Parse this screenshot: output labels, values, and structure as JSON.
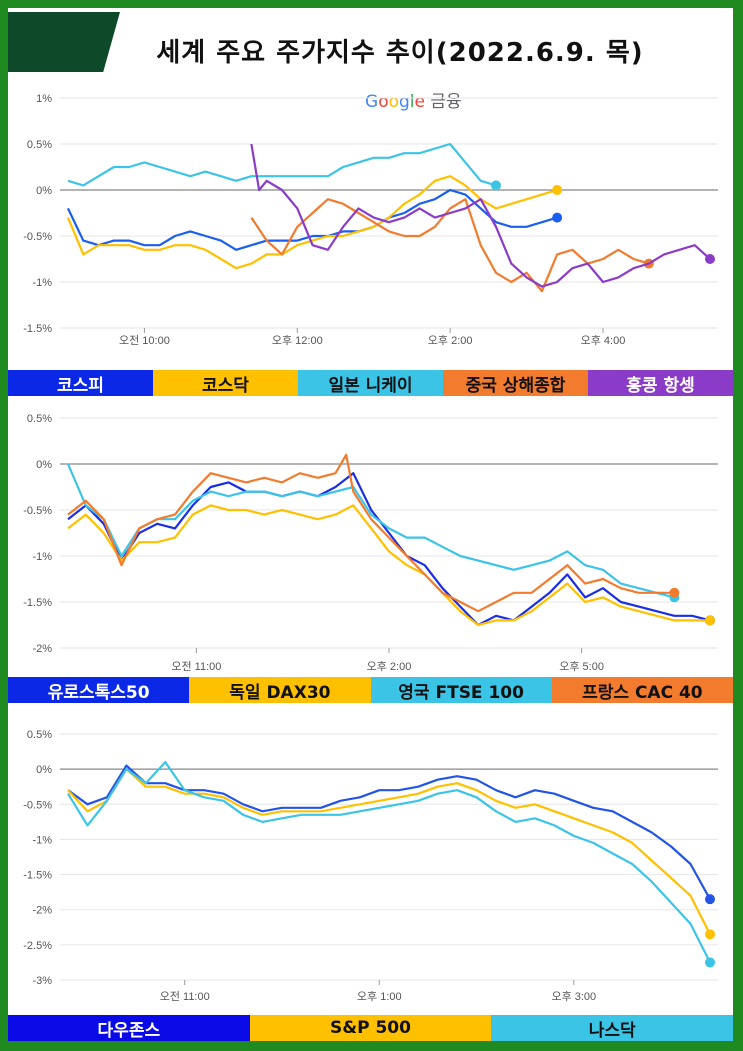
{
  "title": "세계 주요 주가지수 추이(2022.6.9. 목)",
  "source_label": {
    "google": "Google",
    "finance": "금융"
  },
  "colors": {
    "navy": "#1a2ee6",
    "yellow": "#ffc000",
    "cyan": "#3cc4e6",
    "orange": "#f27b2e",
    "purple": "#8a3cc8",
    "legend_blue": "#0a28e6",
    "legend_blue2": "#0a0ae6"
  },
  "chart_data": [
    {
      "type": "line",
      "y_ticks": [
        "1%",
        "0.5%",
        "0%",
        "-0.5%",
        "-1%",
        "-1.5%"
      ],
      "x_ticks": [
        "오전 10:00",
        "오후 12:00",
        "오후 2:00",
        "오후 4:00"
      ],
      "ylim": [
        -1.5,
        1
      ],
      "series": [
        {
          "name": "코스피",
          "color": "#1a5ff0",
          "x": [
            0.0,
            0.2,
            0.4,
            0.6,
            0.8,
            1.0,
            1.2,
            1.4,
            1.6,
            1.8,
            2.0,
            2.2,
            2.4,
            2.6,
            2.8,
            3.0,
            3.2,
            3.4,
            3.6,
            3.8,
            4.0,
            4.2,
            4.4,
            4.6,
            4.8,
            5.0,
            5.2,
            5.4,
            5.6,
            5.8,
            6.0,
            6.2,
            6.4
          ],
          "y": [
            -0.2,
            -0.55,
            -0.6,
            -0.55,
            -0.55,
            -0.6,
            -0.6,
            -0.5,
            -0.45,
            -0.5,
            -0.55,
            -0.65,
            -0.6,
            -0.55,
            -0.55,
            -0.55,
            -0.5,
            -0.5,
            -0.45,
            -0.45,
            -0.4,
            -0.3,
            -0.25,
            -0.15,
            -0.1,
            0.0,
            -0.05,
            -0.2,
            -0.35,
            -0.4,
            -0.4,
            -0.35,
            -0.3
          ]
        },
        {
          "name": "코스닥",
          "color": "#ffc000",
          "x": [
            0.0,
            0.2,
            0.4,
            0.6,
            0.8,
            1.0,
            1.2,
            1.4,
            1.6,
            1.8,
            2.0,
            2.2,
            2.4,
            2.6,
            2.8,
            3.0,
            3.2,
            3.4,
            3.6,
            3.8,
            4.0,
            4.2,
            4.4,
            4.6,
            4.8,
            5.0,
            5.2,
            5.4,
            5.6,
            5.8,
            6.0,
            6.2,
            6.4
          ],
          "y": [
            -0.3,
            -0.7,
            -0.6,
            -0.6,
            -0.6,
            -0.65,
            -0.65,
            -0.6,
            -0.6,
            -0.65,
            -0.75,
            -0.85,
            -0.8,
            -0.7,
            -0.7,
            -0.6,
            -0.55,
            -0.5,
            -0.5,
            -0.45,
            -0.4,
            -0.3,
            -0.15,
            -0.05,
            0.1,
            0.15,
            0.05,
            -0.1,
            -0.2,
            -0.15,
            -0.1,
            -0.05,
            0.0
          ]
        },
        {
          "name": "일본 니케이",
          "color": "#3cc4e6",
          "x": [
            0.0,
            0.2,
            0.4,
            0.6,
            0.8,
            1.0,
            1.2,
            1.4,
            1.6,
            1.8,
            2.0,
            2.2,
            2.4,
            2.6,
            2.8,
            3.0,
            3.2,
            3.4,
            3.6,
            3.8,
            4.0,
            4.2,
            4.4,
            4.6,
            4.8,
            5.0,
            5.2,
            5.4,
            5.6
          ],
          "y": [
            0.1,
            0.05,
            0.15,
            0.25,
            0.25,
            0.3,
            0.25,
            0.2,
            0.15,
            0.2,
            0.15,
            0.1,
            0.15,
            0.15,
            0.15,
            0.15,
            0.15,
            0.15,
            0.25,
            0.3,
            0.35,
            0.35,
            0.4,
            0.4,
            0.45,
            0.5,
            0.3,
            0.1,
            0.05
          ]
        },
        {
          "name": "중국 상해종합",
          "color": "#f27b2e",
          "x": [
            2.4,
            2.6,
            2.8,
            3.0,
            3.2,
            3.4,
            3.6,
            3.8,
            4.0,
            4.2,
            4.4,
            4.6,
            4.8,
            5.0,
            5.2,
            5.4,
            5.6,
            5.8,
            6.0,
            6.2,
            6.4,
            6.6,
            6.8,
            7.0,
            7.2,
            7.4,
            7.6
          ],
          "y": [
            -0.3,
            -0.55,
            -0.7,
            -0.4,
            -0.25,
            -0.1,
            -0.15,
            -0.25,
            -0.35,
            -0.45,
            -0.5,
            -0.5,
            -0.4,
            -0.2,
            -0.1,
            -0.6,
            -0.9,
            -1.0,
            -0.9,
            -1.1,
            -0.7,
            -0.65,
            -0.8,
            -0.75,
            -0.65,
            -0.75,
            -0.8
          ]
        },
        {
          "name": "홍콩 항셍",
          "color": "#8a3cc8",
          "x": [
            2.4,
            2.5,
            2.6,
            2.8,
            3.0,
            3.2,
            3.4,
            3.6,
            3.8,
            4.0,
            4.2,
            4.4,
            4.6,
            4.8,
            5.0,
            5.2,
            5.4,
            5.6,
            5.8,
            6.0,
            6.2,
            6.4,
            6.6,
            6.8,
            7.0,
            7.2,
            7.4,
            7.6,
            7.8,
            8.0,
            8.2,
            8.4
          ],
          "y": [
            0.5,
            0.0,
            0.1,
            0.0,
            -0.2,
            -0.6,
            -0.65,
            -0.4,
            -0.2,
            -0.3,
            -0.35,
            -0.3,
            -0.2,
            -0.3,
            -0.25,
            -0.2,
            -0.1,
            -0.4,
            -0.8,
            -0.95,
            -1.05,
            -1.0,
            -0.85,
            -0.8,
            -1.0,
            -0.95,
            -0.85,
            -0.8,
            -0.7,
            -0.65,
            -0.6,
            -0.75
          ]
        }
      ]
    },
    {
      "type": "line",
      "y_ticks": [
        "0.5%",
        "0%",
        "-0.5%",
        "-1%",
        "-1.5%",
        "-2%"
      ],
      "x_ticks": [
        "오전 11:00",
        "오후 2:00",
        "오후 5:00"
      ],
      "ylim": [
        -2,
        0.5
      ],
      "series": [
        {
          "name": "유로스톡스50",
          "color": "#1a2ee6",
          "x": [
            0,
            0.25,
            0.5,
            0.75,
            1,
            1.25,
            1.5,
            1.75,
            2,
            2.25,
            2.5,
            2.75,
            3,
            3.25,
            3.5,
            3.75,
            4,
            4.25,
            4.5,
            4.75,
            5,
            5.25,
            5.5,
            5.75,
            6,
            6.25,
            6.5,
            6.75,
            7,
            7.25,
            7.5,
            7.75,
            8,
            8.25,
            8.5,
            8.75,
            9
          ],
          "y": [
            -0.6,
            -0.45,
            -0.65,
            -1.05,
            -0.75,
            -0.65,
            -0.7,
            -0.45,
            -0.25,
            -0.2,
            -0.3,
            -0.3,
            -0.35,
            -0.3,
            -0.35,
            -0.25,
            -0.1,
            -0.5,
            -0.75,
            -1.0,
            -1.1,
            -1.35,
            -1.55,
            -1.75,
            -1.65,
            -1.7,
            -1.55,
            -1.4,
            -1.2,
            -1.45,
            -1.35,
            -1.5,
            -1.55,
            -1.6,
            -1.65,
            -1.65,
            -1.7
          ]
        },
        {
          "name": "독일 DAX30",
          "color": "#ffc000",
          "x": [
            0,
            0.25,
            0.5,
            0.75,
            1,
            1.25,
            1.5,
            1.75,
            2,
            2.25,
            2.5,
            2.75,
            3,
            3.25,
            3.5,
            3.75,
            4,
            4.25,
            4.5,
            4.75,
            5,
            5.25,
            5.5,
            5.75,
            6,
            6.25,
            6.5,
            6.75,
            7,
            7.25,
            7.5,
            7.75,
            8,
            8.25,
            8.5,
            8.75,
            9
          ],
          "y": [
            -0.7,
            -0.55,
            -0.75,
            -1.05,
            -0.85,
            -0.85,
            -0.8,
            -0.55,
            -0.45,
            -0.5,
            -0.5,
            -0.55,
            -0.5,
            -0.55,
            -0.6,
            -0.55,
            -0.45,
            -0.7,
            -0.95,
            -1.1,
            -1.2,
            -1.4,
            -1.6,
            -1.75,
            -1.7,
            -1.7,
            -1.6,
            -1.45,
            -1.3,
            -1.5,
            -1.45,
            -1.55,
            -1.6,
            -1.65,
            -1.7,
            -1.7,
            -1.7
          ]
        },
        {
          "name": "영국 FTSE 100",
          "color": "#3cc4e6",
          "x": [
            0,
            0.25,
            0.5,
            0.75,
            1,
            1.25,
            1.5,
            1.75,
            2,
            2.25,
            2.5,
            2.75,
            3,
            3.25,
            3.5,
            3.75,
            4,
            4.25,
            4.5,
            4.75,
            5,
            5.25,
            5.5,
            5.75,
            6,
            6.25,
            6.5,
            6.75,
            7,
            7.25,
            7.5,
            7.75,
            8,
            8.25,
            8.5
          ],
          "y": [
            0,
            -0.45,
            -0.6,
            -1.0,
            -0.7,
            -0.6,
            -0.6,
            -0.4,
            -0.3,
            -0.35,
            -0.3,
            -0.3,
            -0.35,
            -0.3,
            -0.35,
            -0.3,
            -0.25,
            -0.55,
            -0.7,
            -0.8,
            -0.8,
            -0.9,
            -1.0,
            -1.05,
            -1.1,
            -1.15,
            -1.1,
            -1.05,
            -0.95,
            -1.1,
            -1.15,
            -1.3,
            -1.35,
            -1.4,
            -1.45
          ]
        },
        {
          "name": "프랑스 CAC 40",
          "color": "#f27b2e",
          "x": [
            0,
            0.25,
            0.5,
            0.75,
            1,
            1.25,
            1.5,
            1.75,
            2,
            2.25,
            2.5,
            2.75,
            3,
            3.25,
            3.5,
            3.75,
            3.9,
            4,
            4.25,
            4.5,
            4.75,
            5,
            5.25,
            5.5,
            5.75,
            6,
            6.25,
            6.5,
            6.75,
            7,
            7.25,
            7.5,
            7.75,
            8,
            8.25,
            8.5
          ],
          "y": [
            -0.55,
            -0.4,
            -0.6,
            -1.1,
            -0.7,
            -0.6,
            -0.55,
            -0.3,
            -0.1,
            -0.15,
            -0.2,
            -0.15,
            -0.2,
            -0.1,
            -0.15,
            -0.1,
            0.1,
            -0.3,
            -0.6,
            -0.8,
            -1.0,
            -1.2,
            -1.4,
            -1.5,
            -1.6,
            -1.5,
            -1.4,
            -1.4,
            -1.25,
            -1.1,
            -1.3,
            -1.25,
            -1.35,
            -1.4,
            -1.4,
            -1.4
          ]
        }
      ]
    },
    {
      "type": "line",
      "y_ticks": [
        "0.5%",
        "0%",
        "-0.5%",
        "-1%",
        "-1.5%",
        "-2%",
        "-2.5%",
        "-3%"
      ],
      "x_ticks": [
        "오전 11:00",
        "오후 1:00",
        "오후 3:00"
      ],
      "ylim": [
        -3,
        0.5
      ],
      "series": [
        {
          "name": "다우존스",
          "color": "#2255e6",
          "x": [
            0,
            0.2,
            0.4,
            0.6,
            0.8,
            1.0,
            1.2,
            1.4,
            1.6,
            1.8,
            2.0,
            2.2,
            2.4,
            2.6,
            2.8,
            3.0,
            3.2,
            3.4,
            3.6,
            3.8,
            4.0,
            4.2,
            4.4,
            4.6,
            4.8,
            5.0,
            5.2,
            5.4,
            5.6,
            5.8,
            6.0,
            6.2,
            6.4,
            6.6
          ],
          "y": [
            -0.3,
            -0.5,
            -0.4,
            0.05,
            -0.2,
            -0.2,
            -0.3,
            -0.3,
            -0.35,
            -0.5,
            -0.6,
            -0.55,
            -0.55,
            -0.55,
            -0.45,
            -0.4,
            -0.3,
            -0.3,
            -0.25,
            -0.15,
            -0.1,
            -0.15,
            -0.3,
            -0.4,
            -0.3,
            -0.35,
            -0.45,
            -0.55,
            -0.6,
            -0.75,
            -0.9,
            -1.1,
            -1.35,
            -1.85
          ]
        },
        {
          "name": "S&P 500",
          "color": "#ffc000",
          "x": [
            0,
            0.2,
            0.4,
            0.6,
            0.8,
            1.0,
            1.2,
            1.4,
            1.6,
            1.8,
            2.0,
            2.2,
            2.4,
            2.6,
            2.8,
            3.0,
            3.2,
            3.4,
            3.6,
            3.8,
            4.0,
            4.2,
            4.4,
            4.6,
            4.8,
            5.0,
            5.2,
            5.4,
            5.6,
            5.8,
            6.0,
            6.2,
            6.4,
            6.6
          ],
          "y": [
            -0.3,
            -0.6,
            -0.45,
            0.0,
            -0.25,
            -0.25,
            -0.35,
            -0.35,
            -0.4,
            -0.55,
            -0.65,
            -0.6,
            -0.6,
            -0.6,
            -0.55,
            -0.5,
            -0.45,
            -0.4,
            -0.35,
            -0.25,
            -0.2,
            -0.3,
            -0.45,
            -0.55,
            -0.5,
            -0.6,
            -0.7,
            -0.8,
            -0.9,
            -1.05,
            -1.3,
            -1.55,
            -1.8,
            -2.35
          ]
        },
        {
          "name": "나스닥",
          "color": "#3cc4e6",
          "x": [
            0,
            0.2,
            0.4,
            0.6,
            0.8,
            1.0,
            1.2,
            1.4,
            1.6,
            1.8,
            2.0,
            2.2,
            2.4,
            2.6,
            2.8,
            3.0,
            3.2,
            3.4,
            3.6,
            3.8,
            4.0,
            4.2,
            4.4,
            4.6,
            4.8,
            5.0,
            5.2,
            5.4,
            5.6,
            5.8,
            6.0,
            6.2,
            6.4,
            6.6
          ],
          "y": [
            -0.35,
            -0.8,
            -0.45,
            0.0,
            -0.2,
            0.1,
            -0.3,
            -0.4,
            -0.45,
            -0.65,
            -0.75,
            -0.7,
            -0.65,
            -0.65,
            -0.65,
            -0.6,
            -0.55,
            -0.5,
            -0.45,
            -0.35,
            -0.3,
            -0.4,
            -0.6,
            -0.75,
            -0.7,
            -0.8,
            -0.95,
            -1.05,
            -1.2,
            -1.35,
            -1.6,
            -1.9,
            -2.2,
            -2.75
          ]
        }
      ]
    }
  ],
  "legends": [
    [
      {
        "label": "코스피",
        "bg": "#0a28e6",
        "fg": "#ffffff"
      },
      {
        "label": "코스닥",
        "bg": "#ffc000",
        "fg": "#111111"
      },
      {
        "label": "일본 니케이",
        "bg": "#3cc4e6",
        "fg": "#111111"
      },
      {
        "label": "중국 상해종합",
        "bg": "#f27b2e",
        "fg": "#111111"
      },
      {
        "label": "홍콩 항셍",
        "bg": "#8a3cc8",
        "fg": "#ffffff"
      }
    ],
    [
      {
        "label": "유로스톡스50",
        "bg": "#0a28e6",
        "fg": "#ffffff"
      },
      {
        "label": "독일 DAX30",
        "bg": "#ffc000",
        "fg": "#111111"
      },
      {
        "label": "영국 FTSE 100",
        "bg": "#3cc4e6",
        "fg": "#111111"
      },
      {
        "label": "프랑스 CAC 40",
        "bg": "#f27b2e",
        "fg": "#111111"
      }
    ],
    [
      {
        "label": "다우존스",
        "bg": "#0a0ae6",
        "fg": "#ffffff"
      },
      {
        "label": "S&P 500",
        "bg": "#ffc000",
        "fg": "#111111"
      },
      {
        "label": "나스닥",
        "bg": "#3cc4e6",
        "fg": "#111111"
      }
    ]
  ]
}
